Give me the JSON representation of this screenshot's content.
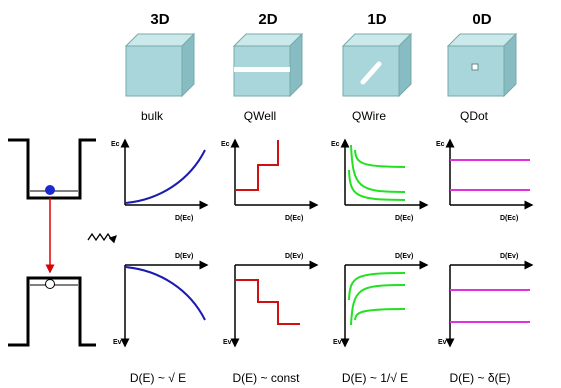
{
  "columns": [
    {
      "dimension": "3D",
      "label": "bulk",
      "conduction": {
        "y_label": "Ec",
        "x_label": "D(Ec)"
      },
      "valence": {
        "x_label": "D(Ev)",
        "y_label": "Ev"
      },
      "formula": "D(E) ~ √ E"
    },
    {
      "dimension": "2D",
      "label": "QWell",
      "conduction": {
        "y_label": "Ec",
        "x_label": "D(Ec)"
      },
      "valence": {
        "x_label": "D(Ev)",
        "y_label": "Ev"
      },
      "formula": "D(E) ~ const"
    },
    {
      "dimension": "1D",
      "label": "QWire",
      "conduction": {
        "y_label": "Ec",
        "x_label": "D(Ec)"
      },
      "valence": {
        "x_label": "D(Ev)",
        "y_label": "Ev"
      },
      "formula": "D(E) ~ 1/√ E"
    },
    {
      "dimension": "0D",
      "label": "QDot",
      "conduction": {
        "y_label": "Ec",
        "x_label": "D(Ec)"
      },
      "valence": {
        "x_label": "D(Ev)",
        "y_label": "Ev"
      },
      "formula": "D(E) ~ δ(E)"
    }
  ]
}
